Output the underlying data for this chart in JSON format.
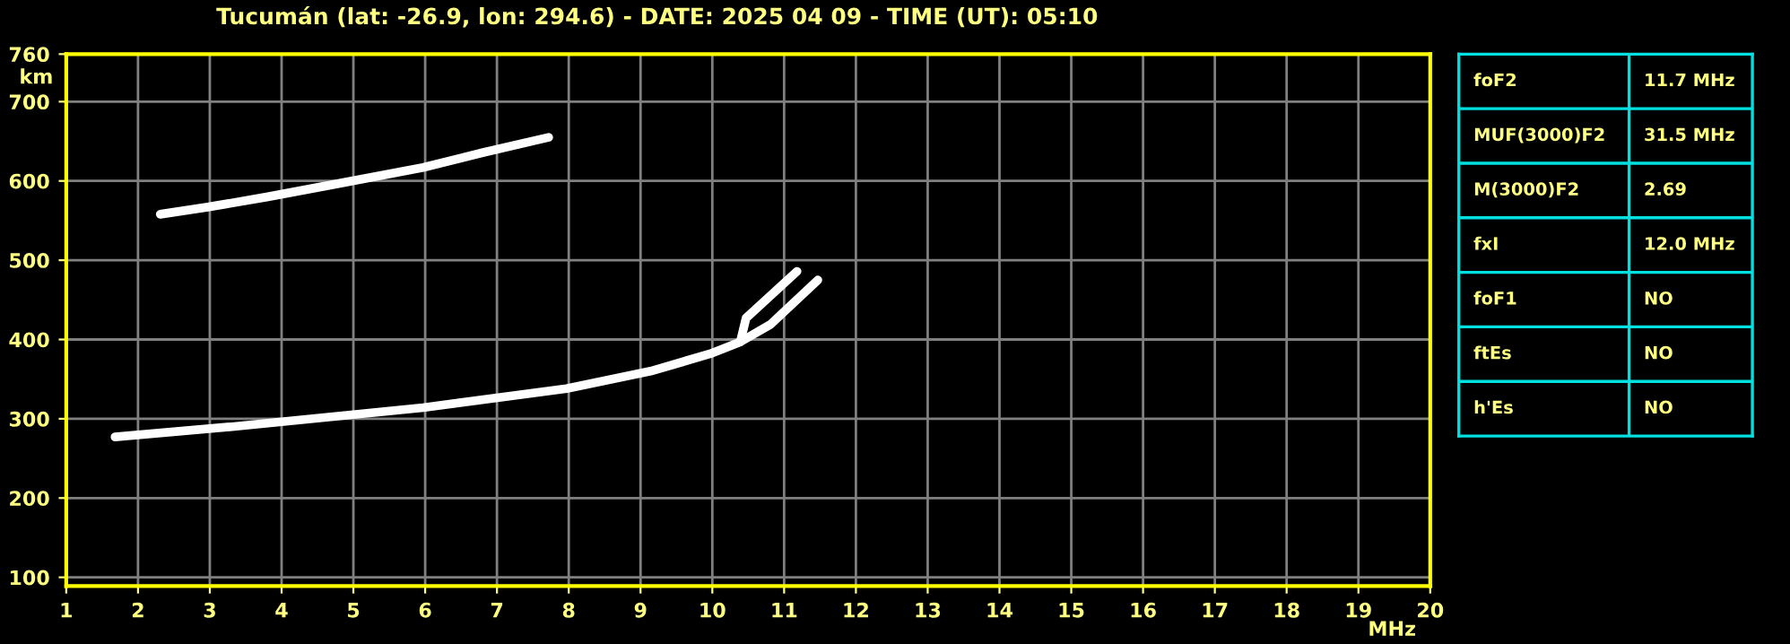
{
  "chart_data": [
    {
      "type": "line",
      "title": "Tucumán (lat: -26.9, lon: 294.6) - DATE: 2025 04 09 - TIME (UT): 05:10",
      "xlabel": "MHz",
      "ylabel": "km",
      "xlim": [
        1,
        20
      ],
      "ylim": [
        89,
        760
      ],
      "xticks": [
        1,
        2,
        3,
        4,
        5,
        6,
        7,
        8,
        9,
        10,
        11,
        12,
        13,
        14,
        15,
        16,
        17,
        18,
        19,
        20
      ],
      "yticks": [
        100,
        200,
        300,
        400,
        500,
        600,
        700,
        760
      ],
      "grid": true,
      "marker": "none",
      "line_style": "solid",
      "series": [
        {
          "color": "#ffffff",
          "x": [
            1.68,
            3.31,
            5.97,
            7.97,
            9.14,
            9.97,
            10.39,
            10.81,
            11.47
          ],
          "values": [
            277,
            290,
            314,
            338,
            360,
            382,
            397,
            419,
            475
          ]
        },
        {
          "color": "#ffffff",
          "x": [
            10.39,
            10.47,
            11.18
          ],
          "values": [
            397,
            427,
            486
          ]
        },
        {
          "color": "#ffffff",
          "x": [
            2.31,
            2.97,
            3.81,
            4.81,
            5.97,
            6.81,
            7.72
          ],
          "values": [
            558,
            567,
            580,
            597,
            617,
            636,
            655
          ]
        }
      ]
    },
    {
      "type": "other",
      "annotations": [
        "foF2",
        "11.7 MHz",
        "MUF(3000)F2",
        "31.5 MHz",
        "M(3000)F2",
        "2.69",
        "fxI",
        "12.0 MHz",
        "foF1",
        "NO",
        "ftEs",
        "NO",
        "h'Es",
        "NO"
      ]
    }
  ]
}
